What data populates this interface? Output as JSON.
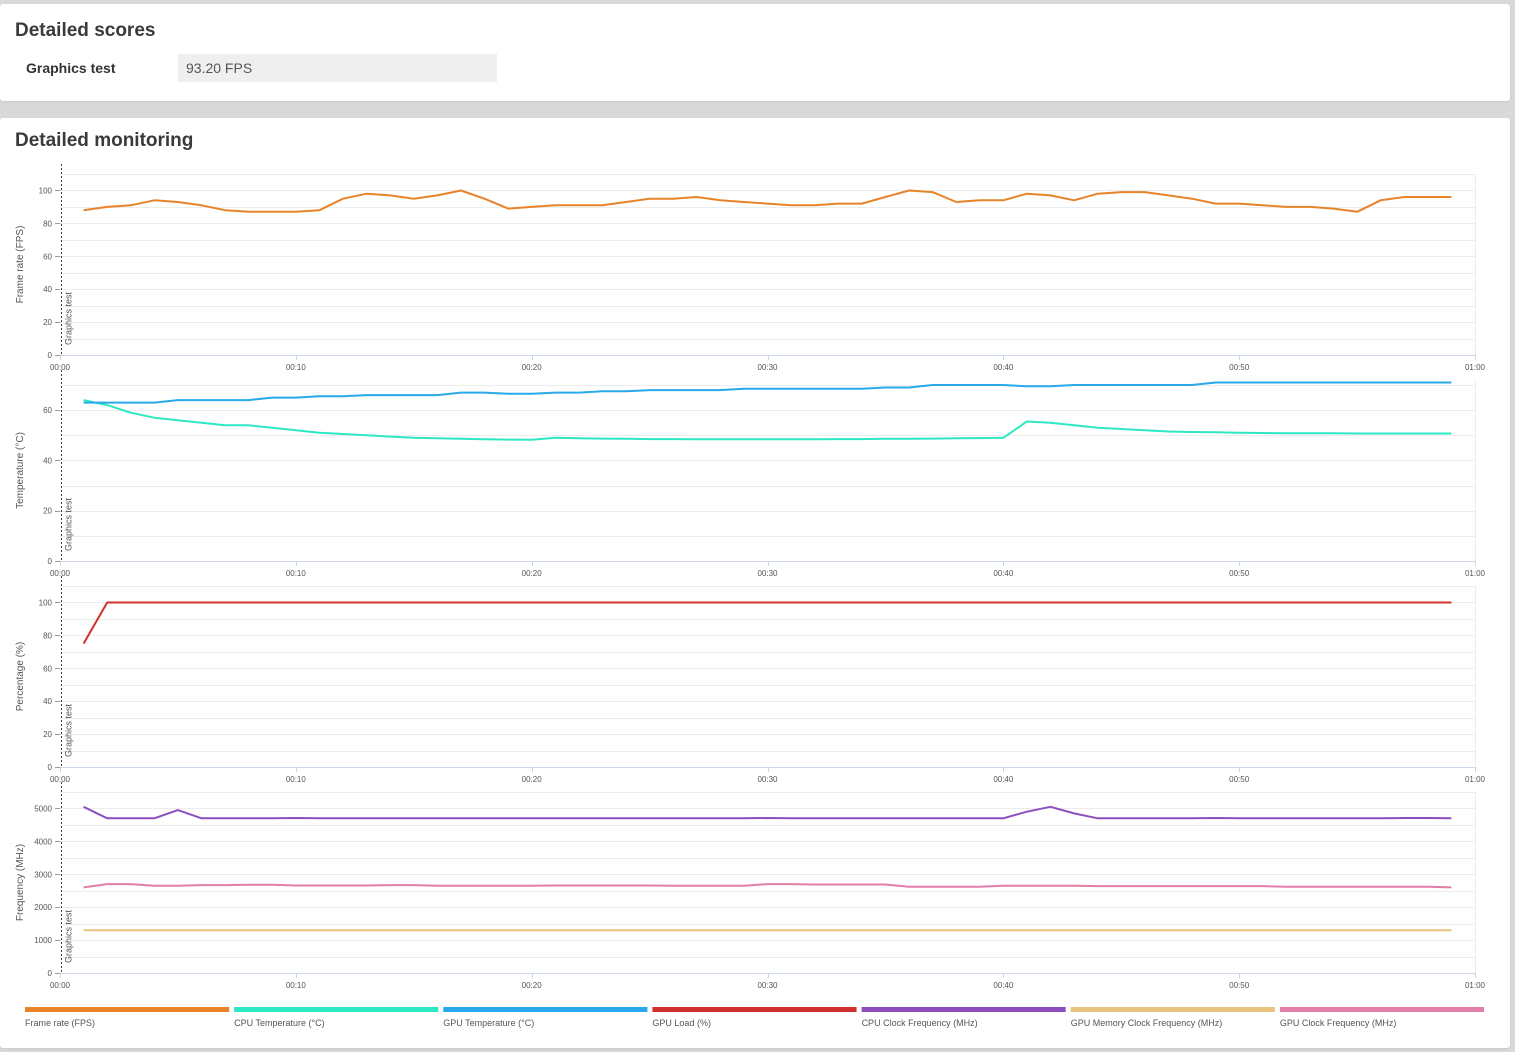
{
  "scores": {
    "title": "Detailed scores",
    "graphics_test_label": "Graphics test",
    "graphics_test_value": "93.20 FPS"
  },
  "monitoring": {
    "title": "Detailed monitoring",
    "marker_label": "Graphics test"
  },
  "chart_data": [
    {
      "type": "line",
      "ylabel": "Frame rate (FPS)",
      "xlim": [
        0,
        60
      ],
      "ylim": [
        0,
        110
      ],
      "yticks": [
        0,
        20,
        40,
        60,
        80,
        100
      ],
      "xticks": [
        "00:00",
        "00:10",
        "00:20",
        "00:30",
        "00:40",
        "00:50",
        "01:00"
      ],
      "grid": true,
      "marker_x": 0,
      "series": [
        {
          "name": "Frame rate (FPS)",
          "color": "#e8832a",
          "x": [
            1,
            2,
            3,
            4,
            5,
            6,
            7,
            8,
            9,
            10,
            11,
            12,
            13,
            14,
            15,
            16,
            17,
            18,
            19,
            20,
            21,
            22,
            23,
            24,
            25,
            26,
            27,
            28,
            29,
            30,
            31,
            32,
            33,
            34,
            35,
            36,
            37,
            38,
            39,
            40,
            41,
            42,
            43,
            44,
            45,
            46,
            47,
            48,
            49,
            50,
            51,
            52,
            53,
            54,
            55,
            56,
            57,
            58,
            59
          ],
          "y": [
            88,
            90,
            91,
            94,
            93,
            91,
            88,
            87,
            87,
            87,
            88,
            95,
            98,
            97,
            95,
            97,
            100,
            95,
            89,
            90,
            91,
            91,
            91,
            93,
            95,
            95,
            96,
            94,
            93,
            92,
            91,
            91,
            92,
            92,
            96,
            100,
            99,
            93,
            94,
            94,
            98,
            97,
            94,
            98,
            99,
            99,
            97,
            95,
            92,
            92,
            91,
            90,
            90,
            89,
            87,
            94,
            96,
            96,
            96
          ]
        }
      ]
    },
    {
      "type": "line",
      "ylabel": "Temperature (°C)",
      "xlim": [
        0,
        60
      ],
      "ylim": [
        0,
        72
      ],
      "yticks": [
        0,
        20,
        40,
        60
      ],
      "xticks": [
        "00:00",
        "00:10",
        "00:20",
        "00:30",
        "00:40",
        "00:50",
        "01:00"
      ],
      "grid": true,
      "marker_x": 0,
      "series": [
        {
          "name": "CPU Temperature (°C)",
          "color": "#2de8c2",
          "x": [
            1,
            2,
            3,
            4,
            5,
            6,
            7,
            8,
            9,
            10,
            11,
            12,
            13,
            14,
            15,
            16,
            17,
            18,
            19,
            20,
            21,
            22,
            23,
            24,
            25,
            26,
            27,
            28,
            29,
            30,
            31,
            32,
            33,
            34,
            35,
            36,
            37,
            38,
            39,
            40,
            41,
            42,
            43,
            44,
            45,
            46,
            47,
            48,
            49,
            50,
            51,
            52,
            53,
            54,
            55,
            56,
            57,
            58,
            59
          ],
          "y": [
            64,
            62,
            59,
            57,
            56,
            55,
            54,
            54,
            53,
            52,
            51,
            50.5,
            50,
            49.5,
            49,
            48.8,
            48.6,
            48.4,
            48.3,
            48.2,
            49,
            48.8,
            48.7,
            48.6,
            48.5,
            48.5,
            48.4,
            48.4,
            48.4,
            48.4,
            48.4,
            48.4,
            48.5,
            48.5,
            48.6,
            48.6,
            48.7,
            48.8,
            48.9,
            49,
            55.5,
            55,
            54,
            53,
            52.5,
            52,
            51.5,
            51.3,
            51.2,
            51,
            50.9,
            50.8,
            50.8,
            50.8,
            50.7,
            50.7,
            50.7,
            50.7,
            50.7
          ]
        },
        {
          "name": "GPU Temperature (°C)",
          "color": "#29a9e9",
          "x": [
            1,
            2,
            3,
            4,
            5,
            6,
            7,
            8,
            9,
            10,
            11,
            12,
            13,
            14,
            15,
            16,
            17,
            18,
            19,
            20,
            21,
            22,
            23,
            24,
            25,
            26,
            27,
            28,
            29,
            30,
            31,
            32,
            33,
            34,
            35,
            36,
            37,
            38,
            39,
            40,
            41,
            42,
            43,
            44,
            45,
            46,
            47,
            48,
            49,
            50,
            51,
            52,
            53,
            54,
            55,
            56,
            57,
            58,
            59
          ],
          "y": [
            63,
            63,
            63,
            63,
            64,
            64,
            64,
            64,
            65,
            65,
            65.5,
            65.5,
            66,
            66,
            66,
            66,
            67,
            67,
            66.5,
            66.5,
            67,
            67,
            67.5,
            67.5,
            68,
            68,
            68,
            68,
            68.5,
            68.5,
            68.5,
            68.5,
            68.5,
            68.5,
            69,
            69,
            70,
            70,
            70,
            70,
            69.5,
            69.5,
            70,
            70,
            70,
            70,
            70,
            70,
            71,
            71,
            71,
            71,
            71,
            71,
            71,
            71,
            71,
            71,
            71
          ]
        }
      ]
    },
    {
      "type": "line",
      "ylabel": "Percentage (%)",
      "xlim": [
        0,
        60
      ],
      "ylim": [
        0,
        110
      ],
      "yticks": [
        0,
        20,
        40,
        60,
        80,
        100
      ],
      "xticks": [
        "00:00",
        "00:10",
        "00:20",
        "00:30",
        "00:40",
        "00:50",
        "01:00"
      ],
      "grid": true,
      "marker_x": 0,
      "series": [
        {
          "name": "GPU Load (%)",
          "color": "#d2302d",
          "x": [
            1,
            2,
            59
          ],
          "y": [
            75,
            100,
            100
          ]
        }
      ]
    },
    {
      "type": "line",
      "ylabel": "Frequency (MHz)",
      "xlim": [
        0,
        60
      ],
      "ylim": [
        0,
        5500
      ],
      "yticks": [
        0,
        1000,
        2000,
        3000,
        4000,
        5000
      ],
      "xticks": [
        "00:00",
        "00:10",
        "00:20",
        "00:30",
        "00:40",
        "00:50",
        "01:00"
      ],
      "grid": true,
      "marker_x": 0,
      "series": [
        {
          "name": "CPU Clock Frequency (MHz)",
          "color": "#8e4fbe",
          "x": [
            1,
            2,
            3,
            4,
            5,
            6,
            7,
            8,
            9,
            10,
            11,
            12,
            13,
            14,
            15,
            16,
            17,
            18,
            19,
            20,
            21,
            22,
            23,
            24,
            25,
            26,
            27,
            28,
            29,
            30,
            31,
            32,
            33,
            34,
            35,
            36,
            37,
            38,
            39,
            40,
            41,
            42,
            43,
            44,
            45,
            46,
            47,
            48,
            49,
            50,
            51,
            52,
            53,
            54,
            55,
            56,
            57,
            58,
            59
          ],
          "y": [
            5050,
            4700,
            4700,
            4700,
            4950,
            4700,
            4700,
            4700,
            4700,
            4710,
            4700,
            4700,
            4700,
            4700,
            4700,
            4700,
            4700,
            4700,
            4700,
            4700,
            4700,
            4700,
            4700,
            4700,
            4700,
            4700,
            4700,
            4700,
            4700,
            4710,
            4700,
            4700,
            4700,
            4700,
            4700,
            4700,
            4700,
            4700,
            4700,
            4700,
            4900,
            5050,
            4850,
            4700,
            4700,
            4700,
            4700,
            4700,
            4710,
            4700,
            4700,
            4700,
            4700,
            4700,
            4700,
            4700,
            4710,
            4710,
            4700
          ]
        },
        {
          "name": "GPU Memory Clock Frequency (MHz)",
          "color": "#e9c27e",
          "x": [
            1,
            59
          ],
          "y": [
            1300,
            1300
          ]
        },
        {
          "name": "GPU Clock Frequency (MHz)",
          "color": "#e27fa9",
          "x": [
            1,
            2,
            3,
            4,
            5,
            6,
            7,
            8,
            9,
            10,
            11,
            12,
            13,
            14,
            15,
            16,
            17,
            18,
            19,
            20,
            21,
            22,
            23,
            24,
            25,
            26,
            27,
            28,
            29,
            30,
            31,
            32,
            33,
            34,
            35,
            36,
            37,
            38,
            39,
            40,
            41,
            42,
            43,
            44,
            45,
            46,
            47,
            48,
            49,
            50,
            51,
            52,
            53,
            54,
            55,
            56,
            57,
            58,
            59
          ],
          "y": [
            2600,
            2700,
            2700,
            2650,
            2650,
            2670,
            2670,
            2680,
            2680,
            2660,
            2660,
            2660,
            2660,
            2670,
            2670,
            2650,
            2650,
            2650,
            2650,
            2650,
            2660,
            2660,
            2660,
            2660,
            2660,
            2650,
            2650,
            2650,
            2650,
            2700,
            2700,
            2690,
            2690,
            2690,
            2690,
            2620,
            2620,
            2620,
            2620,
            2650,
            2650,
            2650,
            2650,
            2640,
            2640,
            2640,
            2640,
            2640,
            2640,
            2640,
            2640,
            2620,
            2620,
            2620,
            2620,
            2620,
            2620,
            2620,
            2600
          ]
        }
      ]
    }
  ],
  "legend": [
    {
      "label": "Frame rate (FPS)",
      "color": "#e8832a"
    },
    {
      "label": "CPU Temperature (°C)",
      "color": "#2de8c2"
    },
    {
      "label": "GPU Temperature (°C)",
      "color": "#29a9e9"
    },
    {
      "label": "GPU Load (%)",
      "color": "#d2302d"
    },
    {
      "label": "CPU Clock Frequency (MHz)",
      "color": "#8e4fbe"
    },
    {
      "label": "GPU Memory Clock Frequency (MHz)",
      "color": "#e9c27e"
    },
    {
      "label": "GPU Clock Frequency (MHz)",
      "color": "#e27fa9"
    }
  ]
}
